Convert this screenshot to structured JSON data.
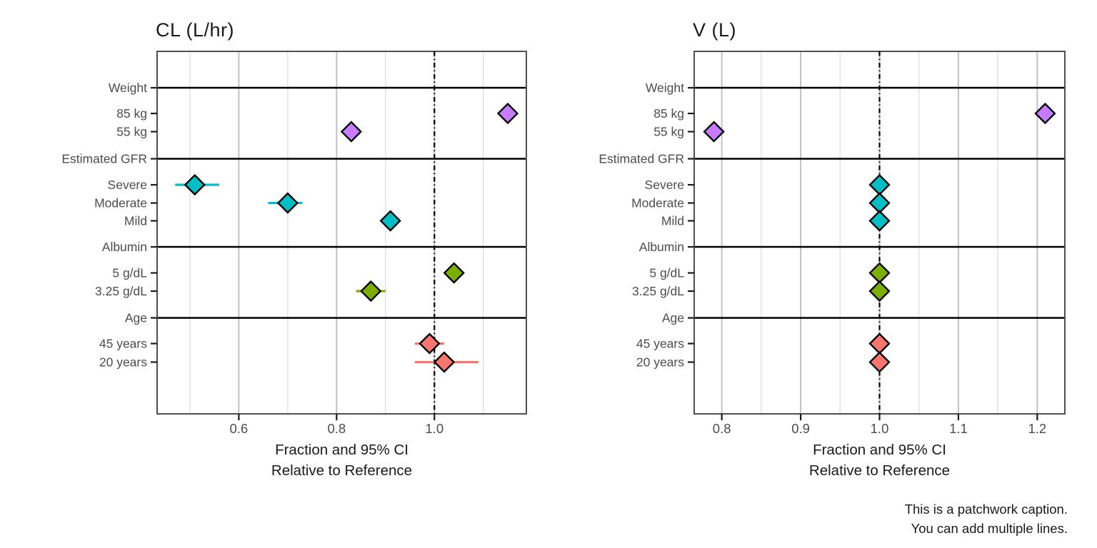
{
  "chart_data": {
    "type": "scatter",
    "subtype": "forest-plot-two-panels",
    "reference_value": 1.0,
    "panels": [
      {
        "title": "CL (L/hr)",
        "value_key": "cl",
        "xlim": [
          0.433,
          1.188
        ],
        "major_ticks": [
          0.6,
          0.8,
          1.0
        ],
        "tick_labels": [
          "0.6",
          "0.8",
          "1.0"
        ],
        "minor_ticks": [
          0.5,
          0.7,
          0.9,
          1.1
        ]
      },
      {
        "title": "V (L)",
        "value_key": "v",
        "xlim": [
          0.765,
          1.235
        ],
        "major_ticks": [
          0.8,
          0.9,
          1.0,
          1.1,
          1.2
        ],
        "tick_labels": [
          "0.8",
          "0.9",
          "1.0",
          "1.1",
          "1.2"
        ],
        "minor_ticks": [
          0.85,
          0.95,
          1.05,
          1.15
        ]
      }
    ],
    "groups": [
      {
        "name": "Weight",
        "color": "#C77CFF",
        "items": [
          {
            "label": "85 kg",
            "cl": {
              "est": 1.15,
              "lo": null,
              "hi": null
            },
            "v": {
              "est": 1.21,
              "lo": null,
              "hi": null
            }
          },
          {
            "label": "55 kg",
            "cl": {
              "est": 0.83,
              "lo": null,
              "hi": null
            },
            "v": {
              "est": 0.79,
              "lo": null,
              "hi": null
            }
          }
        ]
      },
      {
        "name": "Estimated GFR",
        "color": "#00BFC4",
        "items": [
          {
            "label": "Severe",
            "cl": {
              "est": 0.51,
              "lo": 0.47,
              "hi": 0.56
            },
            "v": {
              "est": 1.0,
              "lo": null,
              "hi": null
            }
          },
          {
            "label": "Moderate",
            "cl": {
              "est": 0.7,
              "lo": 0.66,
              "hi": 0.73
            },
            "v": {
              "est": 1.0,
              "lo": null,
              "hi": null
            }
          },
          {
            "label": "Mild",
            "cl": {
              "est": 0.91,
              "lo": null,
              "hi": null
            },
            "v": {
              "est": 1.0,
              "lo": null,
              "hi": null
            }
          }
        ]
      },
      {
        "name": "Albumin",
        "color": "#7CAE00",
        "items": [
          {
            "label": "5 g/dL",
            "cl": {
              "est": 1.04,
              "lo": null,
              "hi": null
            },
            "v": {
              "est": 1.0,
              "lo": null,
              "hi": null
            }
          },
          {
            "label": "3.25 g/dL",
            "cl": {
              "est": 0.87,
              "lo": 0.84,
              "hi": 0.9
            },
            "v": {
              "est": 1.0,
              "lo": null,
              "hi": null
            }
          }
        ]
      },
      {
        "name": "Age",
        "color": "#F8766D",
        "items": [
          {
            "label": "45 years",
            "cl": {
              "est": 0.99,
              "lo": 0.96,
              "hi": 1.02
            },
            "v": {
              "est": 1.0,
              "lo": null,
              "hi": null
            }
          },
          {
            "label": "20 years",
            "cl": {
              "est": 1.02,
              "lo": 0.96,
              "hi": 1.09
            },
            "v": {
              "est": 1.0,
              "lo": null,
              "hi": null
            }
          }
        ]
      }
    ],
    "xlabel_line1": "Fraction and 95% CI",
    "xlabel_line2": "Relative to Reference",
    "caption_line1": "This is a patchwork caption.",
    "caption_line2": "You can add multiple lines.",
    "colors": {
      "grid_major": "#c2c2c2",
      "grid_minor": "#e1e1e1",
      "panel_border": "#4f4f4f",
      "axis_text": "#4d4d4d",
      "tick_mark": "#1a1a1a",
      "separator": "#000000",
      "reference_line": "#000000",
      "diamond_outline": "#000000"
    }
  }
}
